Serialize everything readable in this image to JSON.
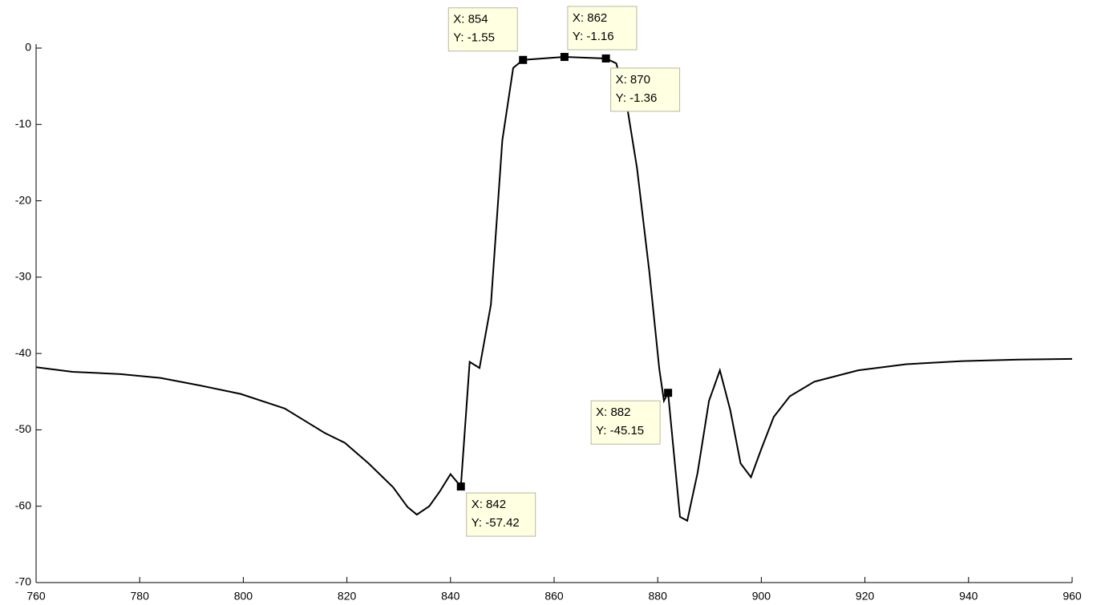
{
  "chart_data": {
    "type": "line",
    "xlim": [
      760,
      960
    ],
    "xticks": [
      760,
      780,
      800,
      820,
      840,
      860,
      880,
      900,
      920,
      940,
      960
    ],
    "ylim": [
      -70,
      0
    ],
    "yticks": [
      -70,
      -60,
      -50,
      -40,
      -30,
      -20,
      -10,
      0
    ],
    "grid": false,
    "series": [
      {
        "color": "#000000",
        "x": [
          760,
          767,
          776.3,
          784,
          791.7,
          799.5,
          808,
          815.7,
          819.6,
          824.2,
          828.9,
          831.7,
          833.5,
          835.9,
          837.9,
          840,
          842,
          843.7,
          845.6,
          847.8,
          850,
          852.1,
          854,
          862,
          870,
          872,
          874,
          876,
          878.4,
          880.3,
          881.2,
          882,
          884.3,
          885.7,
          887.7,
          889.9,
          892,
          894,
          896,
          898,
          900,
          902.4,
          905.5,
          910.2,
          918.7,
          928,
          938.8,
          949.6,
          960
        ],
        "values": [
          -41.8,
          -42.4,
          -42.7,
          -43.2,
          -44.2,
          -45.3,
          -47.2,
          -50.4,
          -51.7,
          -54.4,
          -57.5,
          -60.1,
          -61.1,
          -60.0,
          -58.1,
          -55.8,
          -57.42,
          -41.1,
          -41.9,
          -33.6,
          -12.1,
          -2.6,
          -1.55,
          -1.16,
          -1.36,
          -2.0,
          -7.3,
          -15.7,
          -29.4,
          -42.0,
          -46.2,
          -45.15,
          -61.4,
          -61.9,
          -55.6,
          -46.2,
          -42.2,
          -47.4,
          -54.4,
          -56.2,
          -52.5,
          -48.3,
          -45.6,
          -43.7,
          -42.2,
          -41.4,
          -41.0,
          -40.8,
          -40.7
        ]
      }
    ],
    "datatips": [
      {
        "x": 854,
        "y": -1.55,
        "x_label": "X: 854",
        "y_label": "Y: -1.55"
      },
      {
        "x": 862,
        "y": -1.16,
        "x_label": "X: 862",
        "y_label": "Y: -1.16"
      },
      {
        "x": 870,
        "y": -1.36,
        "x_label": "X: 870",
        "y_label": "Y: -1.36"
      },
      {
        "x": 882,
        "y": -45.15,
        "x_label": "X: 882",
        "y_label": "Y: -45.15"
      },
      {
        "x": 842,
        "y": -57.42,
        "x_label": "X: 842",
        "y_label": "Y: -57.42"
      }
    ]
  }
}
